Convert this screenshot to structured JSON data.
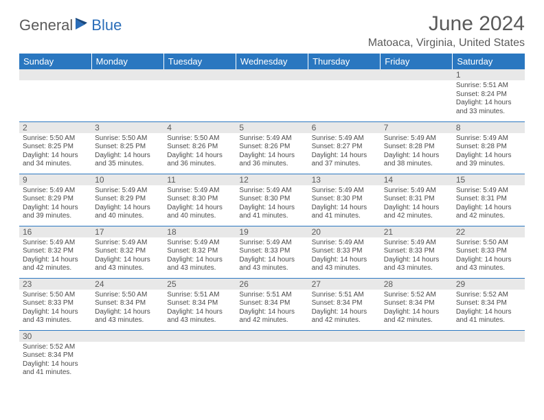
{
  "logo": {
    "word1": "General",
    "word2": "Blue"
  },
  "title": "June 2024",
  "location": "Matoaca, Virginia, United States",
  "colors": {
    "header_bg": "#2a77c0",
    "header_text": "#ffffff",
    "daynum_bg": "#e8e8e8",
    "border": "#2a77c0",
    "title_color": "#5a5a5a",
    "body_text": "#4a4a4a"
  },
  "days_of_week": [
    "Sunday",
    "Monday",
    "Tuesday",
    "Wednesday",
    "Thursday",
    "Friday",
    "Saturday"
  ],
  "first_weekday_index": 6,
  "num_days": 30,
  "days": {
    "1": {
      "sunrise": "Sunrise: 5:51 AM",
      "sunset": "Sunset: 8:24 PM",
      "daylight1": "Daylight: 14 hours",
      "daylight2": "and 33 minutes."
    },
    "2": {
      "sunrise": "Sunrise: 5:50 AM",
      "sunset": "Sunset: 8:25 PM",
      "daylight1": "Daylight: 14 hours",
      "daylight2": "and 34 minutes."
    },
    "3": {
      "sunrise": "Sunrise: 5:50 AM",
      "sunset": "Sunset: 8:25 PM",
      "daylight1": "Daylight: 14 hours",
      "daylight2": "and 35 minutes."
    },
    "4": {
      "sunrise": "Sunrise: 5:50 AM",
      "sunset": "Sunset: 8:26 PM",
      "daylight1": "Daylight: 14 hours",
      "daylight2": "and 36 minutes."
    },
    "5": {
      "sunrise": "Sunrise: 5:49 AM",
      "sunset": "Sunset: 8:26 PM",
      "daylight1": "Daylight: 14 hours",
      "daylight2": "and 36 minutes."
    },
    "6": {
      "sunrise": "Sunrise: 5:49 AM",
      "sunset": "Sunset: 8:27 PM",
      "daylight1": "Daylight: 14 hours",
      "daylight2": "and 37 minutes."
    },
    "7": {
      "sunrise": "Sunrise: 5:49 AM",
      "sunset": "Sunset: 8:28 PM",
      "daylight1": "Daylight: 14 hours",
      "daylight2": "and 38 minutes."
    },
    "8": {
      "sunrise": "Sunrise: 5:49 AM",
      "sunset": "Sunset: 8:28 PM",
      "daylight1": "Daylight: 14 hours",
      "daylight2": "and 39 minutes."
    },
    "9": {
      "sunrise": "Sunrise: 5:49 AM",
      "sunset": "Sunset: 8:29 PM",
      "daylight1": "Daylight: 14 hours",
      "daylight2": "and 39 minutes."
    },
    "10": {
      "sunrise": "Sunrise: 5:49 AM",
      "sunset": "Sunset: 8:29 PM",
      "daylight1": "Daylight: 14 hours",
      "daylight2": "and 40 minutes."
    },
    "11": {
      "sunrise": "Sunrise: 5:49 AM",
      "sunset": "Sunset: 8:30 PM",
      "daylight1": "Daylight: 14 hours",
      "daylight2": "and 40 minutes."
    },
    "12": {
      "sunrise": "Sunrise: 5:49 AM",
      "sunset": "Sunset: 8:30 PM",
      "daylight1": "Daylight: 14 hours",
      "daylight2": "and 41 minutes."
    },
    "13": {
      "sunrise": "Sunrise: 5:49 AM",
      "sunset": "Sunset: 8:30 PM",
      "daylight1": "Daylight: 14 hours",
      "daylight2": "and 41 minutes."
    },
    "14": {
      "sunrise": "Sunrise: 5:49 AM",
      "sunset": "Sunset: 8:31 PM",
      "daylight1": "Daylight: 14 hours",
      "daylight2": "and 42 minutes."
    },
    "15": {
      "sunrise": "Sunrise: 5:49 AM",
      "sunset": "Sunset: 8:31 PM",
      "daylight1": "Daylight: 14 hours",
      "daylight2": "and 42 minutes."
    },
    "16": {
      "sunrise": "Sunrise: 5:49 AM",
      "sunset": "Sunset: 8:32 PM",
      "daylight1": "Daylight: 14 hours",
      "daylight2": "and 42 minutes."
    },
    "17": {
      "sunrise": "Sunrise: 5:49 AM",
      "sunset": "Sunset: 8:32 PM",
      "daylight1": "Daylight: 14 hours",
      "daylight2": "and 43 minutes."
    },
    "18": {
      "sunrise": "Sunrise: 5:49 AM",
      "sunset": "Sunset: 8:32 PM",
      "daylight1": "Daylight: 14 hours",
      "daylight2": "and 43 minutes."
    },
    "19": {
      "sunrise": "Sunrise: 5:49 AM",
      "sunset": "Sunset: 8:33 PM",
      "daylight1": "Daylight: 14 hours",
      "daylight2": "and 43 minutes."
    },
    "20": {
      "sunrise": "Sunrise: 5:49 AM",
      "sunset": "Sunset: 8:33 PM",
      "daylight1": "Daylight: 14 hours",
      "daylight2": "and 43 minutes."
    },
    "21": {
      "sunrise": "Sunrise: 5:49 AM",
      "sunset": "Sunset: 8:33 PM",
      "daylight1": "Daylight: 14 hours",
      "daylight2": "and 43 minutes."
    },
    "22": {
      "sunrise": "Sunrise: 5:50 AM",
      "sunset": "Sunset: 8:33 PM",
      "daylight1": "Daylight: 14 hours",
      "daylight2": "and 43 minutes."
    },
    "23": {
      "sunrise": "Sunrise: 5:50 AM",
      "sunset": "Sunset: 8:33 PM",
      "daylight1": "Daylight: 14 hours",
      "daylight2": "and 43 minutes."
    },
    "24": {
      "sunrise": "Sunrise: 5:50 AM",
      "sunset": "Sunset: 8:34 PM",
      "daylight1": "Daylight: 14 hours",
      "daylight2": "and 43 minutes."
    },
    "25": {
      "sunrise": "Sunrise: 5:51 AM",
      "sunset": "Sunset: 8:34 PM",
      "daylight1": "Daylight: 14 hours",
      "daylight2": "and 43 minutes."
    },
    "26": {
      "sunrise": "Sunrise: 5:51 AM",
      "sunset": "Sunset: 8:34 PM",
      "daylight1": "Daylight: 14 hours",
      "daylight2": "and 42 minutes."
    },
    "27": {
      "sunrise": "Sunrise: 5:51 AM",
      "sunset": "Sunset: 8:34 PM",
      "daylight1": "Daylight: 14 hours",
      "daylight2": "and 42 minutes."
    },
    "28": {
      "sunrise": "Sunrise: 5:52 AM",
      "sunset": "Sunset: 8:34 PM",
      "daylight1": "Daylight: 14 hours",
      "daylight2": "and 42 minutes."
    },
    "29": {
      "sunrise": "Sunrise: 5:52 AM",
      "sunset": "Sunset: 8:34 PM",
      "daylight1": "Daylight: 14 hours",
      "daylight2": "and 41 minutes."
    },
    "30": {
      "sunrise": "Sunrise: 5:52 AM",
      "sunset": "Sunset: 8:34 PM",
      "daylight1": "Daylight: 14 hours",
      "daylight2": "and 41 minutes."
    }
  }
}
